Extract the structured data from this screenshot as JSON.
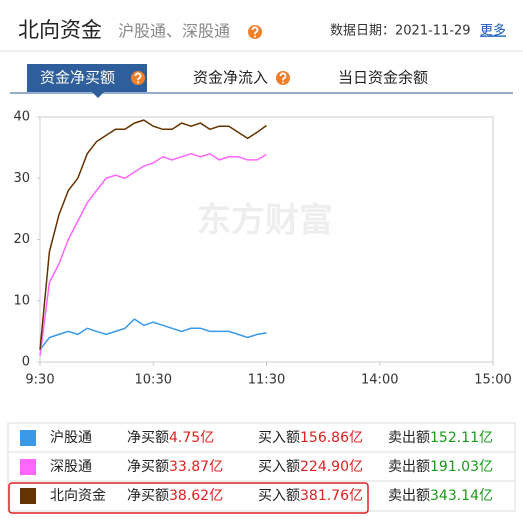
{
  "header": {
    "title": "北向资金",
    "subtitle": "沪股通、深股通",
    "date_label": "数据日期：2021-11-29",
    "more": "更多"
  },
  "tabs": [
    "资金净买额",
    "资金净流入",
    "当日资金余额"
  ],
  "chart_data": {
    "type": "line",
    "watermark": "东方财富",
    "x": [
      0,
      5,
      10,
      15,
      20,
      25,
      30,
      35,
      40,
      45,
      50,
      55,
      60,
      65,
      70,
      75,
      80,
      85,
      90,
      95,
      100,
      105,
      110,
      115,
      120
    ],
    "xlim": [
      0,
      240
    ],
    "xticks": [
      {
        "value": 0,
        "label": "9:30"
      },
      {
        "value": 60,
        "label": "10:30"
      },
      {
        "value": 120,
        "label": "11:30"
      },
      {
        "value": 180,
        "label": "14:00"
      },
      {
        "value": 240,
        "label": "15:00"
      }
    ],
    "ylim": [
      0,
      40
    ],
    "yticks": [
      0,
      10,
      20,
      30,
      40
    ],
    "grid": false,
    "series": [
      {
        "name": "沪股通",
        "color": "#3a9ae8",
        "values": [
          2,
          4,
          4.5,
          5,
          4.5,
          5.5,
          5,
          4.5,
          5,
          5.5,
          7,
          6,
          6.5,
          6,
          5.5,
          5,
          5.5,
          5.5,
          5,
          5,
          5,
          4.5,
          4,
          4.5,
          4.75
        ]
      },
      {
        "name": "深股通",
        "color": "#ff66ff",
        "values": [
          1,
          13,
          16,
          20,
          23,
          26,
          28,
          30,
          30.5,
          30,
          31,
          32,
          32.5,
          33.5,
          33,
          33.5,
          34,
          33.5,
          34,
          33,
          33.5,
          33.5,
          33,
          33,
          33.87
        ]
      },
      {
        "name": "北向资金",
        "color": "#663300",
        "values": [
          2,
          18,
          24,
          28,
          30,
          34,
          36,
          37,
          38,
          38,
          39,
          39.5,
          38.5,
          38,
          38,
          39,
          38.5,
          39,
          38,
          38.5,
          38.5,
          37.5,
          36.5,
          37.5,
          38.62
        ]
      }
    ]
  },
  "table": {
    "labels": {
      "net": "净买额",
      "buy": "买入额",
      "sell": "卖出额"
    },
    "rows": [
      {
        "net": "4.75亿",
        "buy": "156.86亿",
        "sell": "152.11亿"
      },
      {
        "net": "33.87亿",
        "buy": "224.90亿",
        "sell": "191.03亿"
      },
      {
        "net": "38.62亿",
        "buy": "381.76亿",
        "sell": "343.14亿"
      }
    ]
  }
}
